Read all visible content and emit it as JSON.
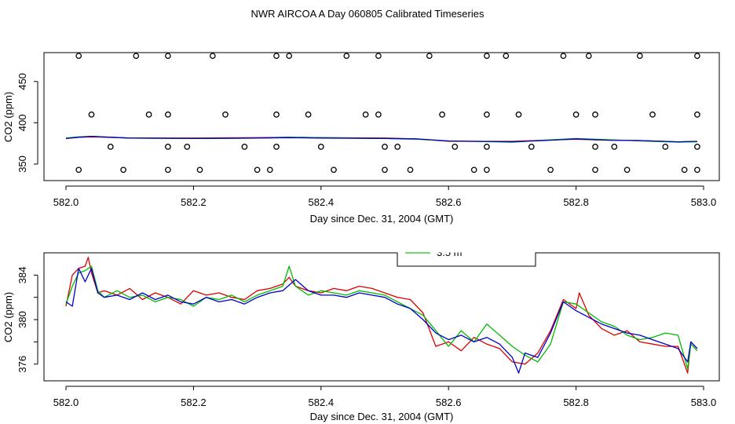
{
  "figure": {
    "title": "NWR AIRCOA A  Day 060805  Calibrated Timeseries"
  },
  "chart_data": [
    {
      "type": "scatter",
      "xlabel": "Day since Dec. 31, 2004 (GMT)",
      "ylabel": "CO2 (ppm)",
      "xlim": [
        582.0,
        583.0
      ],
      "ylim": [
        330,
        485
      ],
      "xticks": [
        582.0,
        582.2,
        582.4,
        582.6,
        582.8,
        583.0
      ],
      "xtick_labels": [
        "582.0",
        "582.2",
        "582.4",
        "582.6",
        "582.8",
        "583.0"
      ],
      "yticks": [
        350,
        400,
        450
      ],
      "ytick_labels": [
        "350",
        "400",
        "450"
      ],
      "grid": false,
      "lines": [
        {
          "color": "#dd0000",
          "x": [
            582.0,
            582.02,
            582.04,
            582.1,
            582.2,
            582.3,
            582.35,
            582.4,
            582.5,
            582.55,
            582.6,
            582.7,
            582.75,
            582.8,
            582.85,
            582.9,
            582.96,
            582.99
          ],
          "y": [
            381,
            382.5,
            383,
            381.5,
            381.5,
            382,
            382.5,
            382,
            381.5,
            380.5,
            377.5,
            377.5,
            379,
            380,
            379,
            378.5,
            377,
            377.5
          ]
        },
        {
          "color": "#00bb00",
          "x": [
            582.0,
            582.02,
            582.04,
            582.1,
            582.2,
            582.3,
            582.35,
            582.4,
            582.5,
            582.55,
            582.6,
            582.7,
            582.75,
            582.8,
            582.85,
            582.9,
            582.96,
            582.99
          ],
          "y": [
            381.5,
            383,
            383.5,
            381.5,
            381,
            381.5,
            382.5,
            382,
            381,
            380,
            378,
            376.5,
            379,
            381,
            379.5,
            378,
            376.5,
            377
          ]
        },
        {
          "color": "#0000cc",
          "x": [
            582.0,
            582.02,
            582.04,
            582.1,
            582.2,
            582.3,
            582.35,
            582.4,
            582.5,
            582.55,
            582.6,
            582.7,
            582.75,
            582.8,
            582.85,
            582.9,
            582.96,
            582.99
          ],
          "y": [
            381,
            382.5,
            383.5,
            381.5,
            381,
            381.5,
            382,
            381.5,
            381,
            380.5,
            378,
            377,
            378.5,
            380.5,
            379,
            378.5,
            377,
            377.5
          ]
        }
      ],
      "points": {
        "x": [
          582.02,
          582.09,
          582.16,
          582.21,
          582.3,
          582.32,
          582.42,
          582.5,
          582.54,
          582.64,
          582.66,
          582.76,
          582.83,
          582.88,
          582.97,
          582.99,
          582.07,
          582.16,
          582.19,
          582.28,
          582.33,
          582.4,
          582.5,
          582.52,
          582.61,
          582.66,
          582.73,
          582.83,
          582.86,
          582.94,
          582.99,
          582.04,
          582.13,
          582.16,
          582.25,
          582.33,
          582.38,
          582.47,
          582.49,
          582.59,
          582.66,
          582.71,
          582.8,
          582.83,
          582.92,
          582.99,
          582.02,
          582.11,
          582.16,
          582.23,
          582.33,
          582.35,
          582.44,
          582.49,
          582.57,
          582.66,
          582.69,
          582.78,
          582.82,
          582.9,
          582.99
        ],
        "y": [
          343,
          343,
          343,
          343,
          343,
          343,
          343,
          343,
          343,
          343,
          343,
          343,
          343,
          343,
          343,
          343,
          371,
          371,
          371,
          371,
          371,
          371,
          371,
          371,
          371,
          371,
          371,
          371,
          371,
          371,
          371,
          410,
          410,
          410,
          410,
          410,
          410,
          410,
          410,
          410,
          410,
          410,
          410,
          410,
          410,
          410,
          481,
          481,
          481,
          481,
          481,
          481,
          481,
          481,
          481,
          481,
          481,
          481,
          481,
          481,
          481
        ]
      }
    },
    {
      "type": "line",
      "xlabel": "Day since Dec. 31, 2004 (GMT)",
      "ylabel": "CO2 (ppm)",
      "xlim": [
        582.0,
        583.0
      ],
      "ylim": [
        374.5,
        386.0
      ],
      "xticks": [
        582.0,
        582.2,
        582.4,
        582.6,
        582.8,
        583.0
      ],
      "xtick_labels": [
        "582.0",
        "582.2",
        "582.4",
        "582.6",
        "582.8",
        "583.0"
      ],
      "yticks": [
        376,
        378,
        380,
        382,
        384
      ],
      "ytick_labels": [
        "376",
        "378",
        "380",
        "382",
        "384"
      ],
      "grid": false,
      "legend": {
        "placement": "top-center",
        "entries": [
          {
            "label": "3.5 m",
            "color": "#00bb00"
          }
        ]
      },
      "series": [
        {
          "color": "#dd0000",
          "x": [
            582.0,
            582.01,
            582.02,
            582.03,
            582.035,
            582.04,
            582.05,
            582.06,
            582.08,
            582.1,
            582.12,
            582.14,
            582.16,
            582.18,
            582.2,
            582.22,
            582.24,
            582.26,
            582.28,
            582.3,
            582.32,
            582.34,
            582.35,
            582.36,
            582.38,
            582.4,
            582.42,
            582.44,
            582.46,
            582.48,
            582.5,
            582.52,
            582.54,
            582.56,
            582.58,
            582.6,
            582.62,
            582.64,
            582.66,
            582.68,
            582.7,
            582.72,
            582.74,
            582.76,
            582.78,
            582.8,
            582.805,
            582.82,
            582.84,
            582.86,
            582.88,
            582.9,
            582.92,
            582.94,
            582.96,
            582.975,
            582.98,
            582.99
          ],
          "y": [
            381.2,
            384.0,
            384.6,
            384.8,
            385.6,
            384.2,
            382.4,
            382.6,
            382.2,
            382.8,
            381.8,
            382.4,
            382.0,
            381.4,
            382.6,
            382.2,
            382.4,
            382.0,
            381.8,
            382.6,
            382.8,
            383.2,
            383.8,
            383.0,
            382.6,
            382.4,
            382.8,
            382.6,
            383.0,
            382.8,
            382.4,
            382.0,
            381.8,
            380.6,
            377.6,
            378.0,
            377.2,
            378.4,
            377.8,
            377.4,
            376.2,
            376.0,
            377.0,
            379.0,
            381.8,
            381.0,
            382.4,
            380.4,
            379.2,
            378.6,
            379.0,
            378.0,
            377.8,
            377.6,
            377.6,
            375.2,
            378.0,
            377.4
          ]
        },
        {
          "color": "#00bb00",
          "x": [
            582.0,
            582.01,
            582.02,
            582.03,
            582.04,
            582.05,
            582.06,
            582.08,
            582.1,
            582.12,
            582.14,
            582.16,
            582.18,
            582.2,
            582.22,
            582.24,
            582.26,
            582.28,
            582.3,
            582.32,
            582.34,
            582.35,
            582.36,
            582.38,
            582.4,
            582.42,
            582.44,
            582.46,
            582.48,
            582.5,
            582.52,
            582.54,
            582.56,
            582.58,
            582.6,
            582.62,
            582.64,
            582.66,
            582.68,
            582.7,
            582.72,
            582.74,
            582.76,
            582.78,
            582.8,
            582.82,
            582.84,
            582.86,
            582.88,
            582.9,
            582.92,
            582.94,
            582.96,
            582.975,
            582.98,
            582.99
          ],
          "y": [
            381.4,
            383.0,
            384.2,
            384.4,
            384.8,
            382.6,
            382.0,
            382.6,
            382.0,
            382.2,
            381.6,
            382.0,
            381.8,
            381.2,
            382.0,
            381.8,
            382.2,
            381.6,
            382.2,
            382.6,
            383.0,
            384.8,
            383.0,
            382.2,
            382.6,
            382.4,
            382.2,
            382.6,
            382.4,
            382.2,
            381.6,
            381.0,
            380.4,
            379.0,
            377.6,
            379.0,
            378.0,
            379.6,
            378.6,
            377.6,
            376.8,
            376.2,
            377.8,
            381.6,
            381.4,
            380.6,
            379.8,
            379.4,
            378.6,
            378.2,
            378.4,
            378.8,
            378.6,
            375.6,
            377.8,
            377.2
          ]
        },
        {
          "color": "#0000cc",
          "x": [
            582.0,
            582.01,
            582.02,
            582.03,
            582.04,
            582.05,
            582.06,
            582.08,
            582.1,
            582.12,
            582.14,
            582.16,
            582.18,
            582.2,
            582.22,
            582.24,
            582.26,
            582.28,
            582.3,
            582.32,
            582.34,
            582.36,
            582.38,
            582.4,
            582.42,
            582.44,
            582.46,
            582.48,
            582.5,
            582.52,
            582.54,
            582.56,
            582.58,
            582.6,
            582.62,
            582.64,
            582.66,
            582.68,
            582.7,
            582.71,
            582.72,
            582.74,
            582.76,
            582.78,
            582.8,
            582.82,
            582.84,
            582.86,
            582.88,
            582.9,
            582.92,
            582.94,
            582.96,
            582.975,
            582.98,
            582.99
          ],
          "y": [
            381.6,
            381.2,
            384.6,
            383.4,
            384.6,
            382.4,
            382.0,
            382.2,
            381.8,
            382.4,
            381.8,
            382.2,
            381.6,
            381.4,
            382.0,
            381.6,
            381.8,
            381.4,
            382.0,
            382.4,
            382.6,
            383.6,
            382.6,
            382.2,
            382.2,
            382.0,
            382.4,
            382.2,
            382.0,
            381.4,
            381.0,
            380.0,
            378.8,
            378.2,
            378.6,
            378.0,
            378.4,
            377.8,
            376.6,
            375.2,
            377.0,
            376.6,
            378.8,
            381.6,
            380.8,
            380.2,
            379.6,
            379.2,
            378.8,
            378.6,
            378.2,
            377.8,
            377.4,
            376.2,
            378.0,
            377.4
          ]
        }
      ]
    }
  ]
}
